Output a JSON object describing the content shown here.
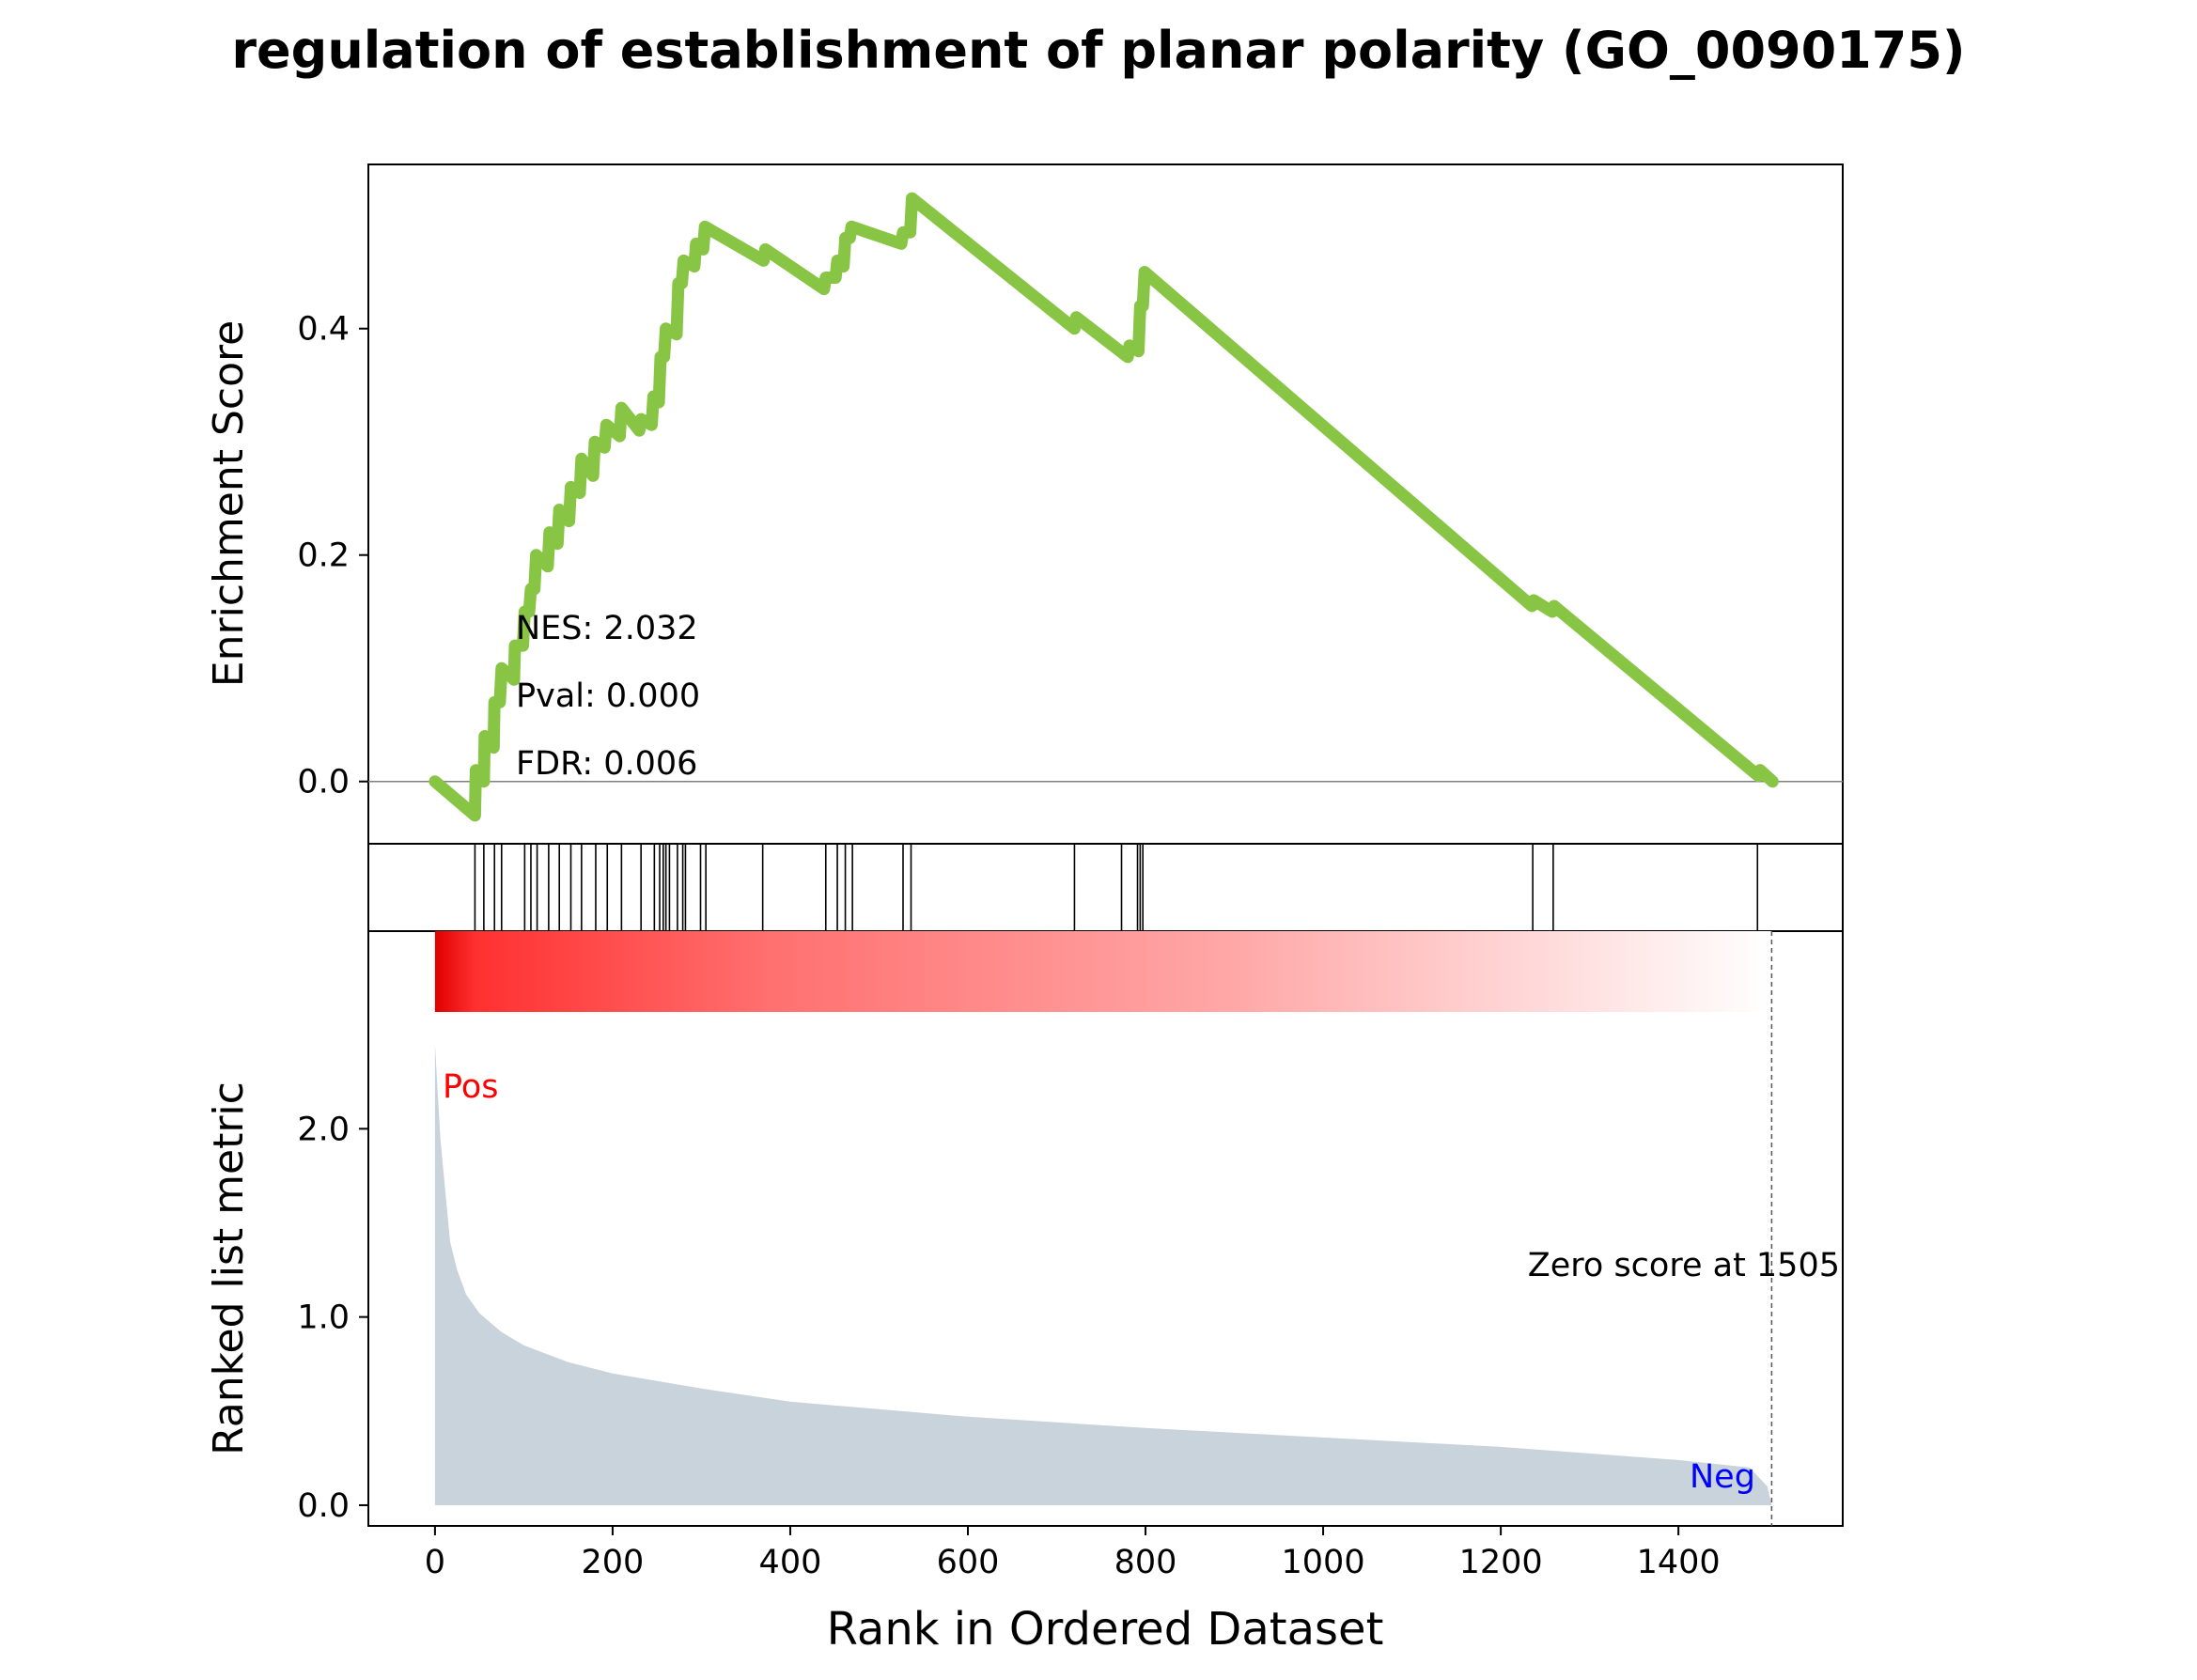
{
  "title": "regulation of establishment of planar polarity (GO_0090175)",
  "colors": {
    "es_line": "#88C544",
    "hit_line": "#000000",
    "metric_fill": "#C9D3DB",
    "pos_label": "#FF0000",
    "neg_label": "#0000FF",
    "zero_line": "#808080",
    "heat_start": "#E00000",
    "heat_end": "#FFFFFF"
  },
  "chart_data": {
    "type": "line",
    "title": "regulation of establishment of planar polarity (GO_0090175)",
    "xlabel": "Rank in Ordered Dataset",
    "xlim": [
      -75,
      1585
    ],
    "xticks": [
      0,
      200,
      400,
      600,
      800,
      1000,
      1200,
      1400
    ],
    "n_genes": 1506,
    "enrichment": {
      "ylabel": "Enrichment Score",
      "ylim": [
        -0.055,
        0.545
      ],
      "yticks": [
        "0.0",
        "0.2",
        "0.4"
      ],
      "ytick_values": [
        0.0,
        0.2,
        0.4
      ],
      "points": [
        [
          0,
          0.0
        ],
        [
          45,
          -0.03
        ],
        [
          46,
          0.01
        ],
        [
          55,
          0.0
        ],
        [
          56,
          0.04
        ],
        [
          66,
          0.03
        ],
        [
          67,
          0.07
        ],
        [
          73,
          0.07
        ],
        [
          75,
          0.1
        ],
        [
          89,
          0.09
        ],
        [
          90,
          0.12
        ],
        [
          99,
          0.12
        ],
        [
          101,
          0.15
        ],
        [
          106,
          0.15
        ],
        [
          108,
          0.17
        ],
        [
          112,
          0.17
        ],
        [
          114,
          0.2
        ],
        [
          127,
          0.19
        ],
        [
          129,
          0.22
        ],
        [
          138,
          0.21
        ],
        [
          140,
          0.24
        ],
        [
          151,
          0.23
        ],
        [
          153,
          0.26
        ],
        [
          163,
          0.255
        ],
        [
          165,
          0.285
        ],
        [
          178,
          0.27
        ],
        [
          180,
          0.3
        ],
        [
          191,
          0.295
        ],
        [
          193,
          0.315
        ],
        [
          208,
          0.305
        ],
        [
          210,
          0.33
        ],
        [
          230,
          0.31
        ],
        [
          232,
          0.32
        ],
        [
          244,
          0.315
        ],
        [
          246,
          0.34
        ],
        [
          252,
          0.335
        ],
        [
          254,
          0.375
        ],
        [
          258,
          0.375
        ],
        [
          260,
          0.4
        ],
        [
          272,
          0.395
        ],
        [
          274,
          0.44
        ],
        [
          278,
          0.44
        ],
        [
          280,
          0.46
        ],
        [
          292,
          0.455
        ],
        [
          294,
          0.475
        ],
        [
          302,
          0.47
        ],
        [
          304,
          0.49
        ],
        [
          370,
          0.46
        ],
        [
          372,
          0.47
        ],
        [
          438,
          0.435
        ],
        [
          440,
          0.445
        ],
        [
          451,
          0.445
        ],
        [
          453,
          0.46
        ],
        [
          460,
          0.455
        ],
        [
          462,
          0.48
        ],
        [
          467,
          0.48
        ],
        [
          469,
          0.49
        ],
        [
          525,
          0.475
        ],
        [
          527,
          0.485
        ],
        [
          535,
          0.485
        ],
        [
          537,
          0.515
        ],
        [
          720,
          0.4
        ],
        [
          722,
          0.41
        ],
        [
          780,
          0.375
        ],
        [
          782,
          0.385
        ],
        [
          792,
          0.38
        ],
        [
          794,
          0.42
        ],
        [
          797,
          0.42
        ],
        [
          799,
          0.45
        ],
        [
          1235,
          0.155
        ],
        [
          1237,
          0.16
        ],
        [
          1258,
          0.15
        ],
        [
          1260,
          0.155
        ],
        [
          1490,
          0.005
        ],
        [
          1492,
          0.01
        ],
        [
          1506,
          0.0
        ]
      ],
      "annotations": [
        "NES: 2.032",
        "Pval: 0.000",
        "FDR: 0.006"
      ]
    },
    "hits": [
      45,
      55,
      67,
      75,
      101,
      108,
      115,
      128,
      140,
      153,
      165,
      181,
      194,
      210,
      232,
      247,
      253,
      257,
      260,
      264,
      273,
      279,
      282,
      299,
      305,
      369,
      440,
      453,
      462,
      470,
      527,
      536,
      720,
      773,
      791,
      794,
      797,
      1236,
      1259,
      1489
    ],
    "metric": {
      "ylabel": "Ranked list metric",
      "ylim": [
        -0.11,
        3.05
      ],
      "yticks": [
        "0.0",
        "1.0",
        "2.0"
      ],
      "ytick_values": [
        0.0,
        1.0,
        2.0
      ],
      "profile": [
        [
          0,
          2.45
        ],
        [
          3,
          2.2
        ],
        [
          6,
          1.95
        ],
        [
          9,
          1.8
        ],
        [
          13,
          1.6
        ],
        [
          17,
          1.4
        ],
        [
          25,
          1.25
        ],
        [
          35,
          1.12
        ],
        [
          50,
          1.02
        ],
        [
          75,
          0.92
        ],
        [
          100,
          0.85
        ],
        [
          150,
          0.76
        ],
        [
          200,
          0.7
        ],
        [
          300,
          0.62
        ],
        [
          400,
          0.55
        ],
        [
          500,
          0.51
        ],
        [
          600,
          0.47
        ],
        [
          800,
          0.41
        ],
        [
          1000,
          0.36
        ],
        [
          1200,
          0.31
        ],
        [
          1400,
          0.24
        ],
        [
          1480,
          0.2
        ],
        [
          1500,
          0.1
        ],
        [
          1505,
          0.0
        ]
      ],
      "pos_label": "Pos",
      "neg_label": "Neg",
      "zero_score_label": "Zero score at 1505",
      "zero_score_rank": 1505
    }
  }
}
